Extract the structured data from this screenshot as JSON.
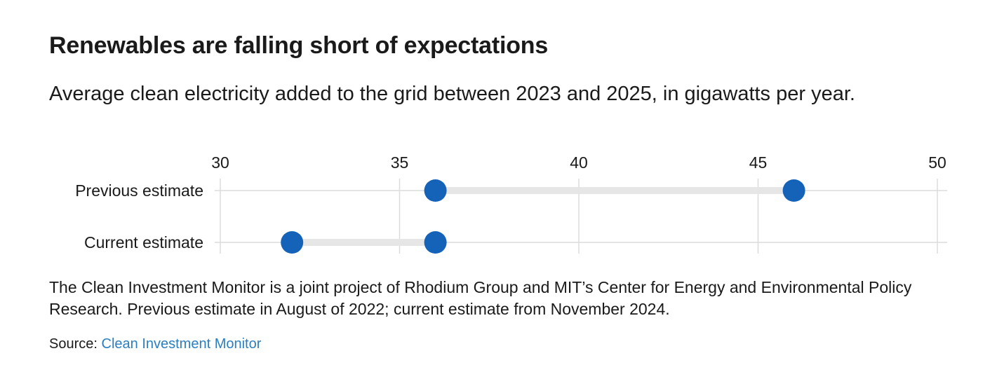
{
  "chart_data": {
    "type": "dot-range",
    "title": "Renewables are falling short of expectations",
    "subtitle": "Average clean electricity added to the grid between 2023 and 2025, in gigawatts per year.",
    "xlim": [
      30,
      50
    ],
    "x_ticks": [
      30,
      35,
      40,
      45,
      50
    ],
    "x_tick_labels": [
      "30",
      "35",
      "40",
      "45",
      "50"
    ],
    "axis_position": "top",
    "grid": true,
    "categories": [
      "Previous estimate",
      "Current estimate"
    ],
    "ranges": [
      {
        "category": "Previous estimate",
        "low": 36,
        "high": 46
      },
      {
        "category": "Current estimate",
        "low": 32,
        "high": 36
      }
    ],
    "colors": {
      "dot": "#1563b8",
      "range_bar": "#e6e6e6",
      "grid": "#dcdcdc"
    }
  },
  "note": "The Clean Investment Monitor is a joint project of Rhodium Group and MIT’s Center for Energy and Environmental Policy Research. Previous estimate in August of 2022; current estimate from November 2024.",
  "source": {
    "label": "Source:",
    "link_text": "Clean Investment Monitor"
  }
}
